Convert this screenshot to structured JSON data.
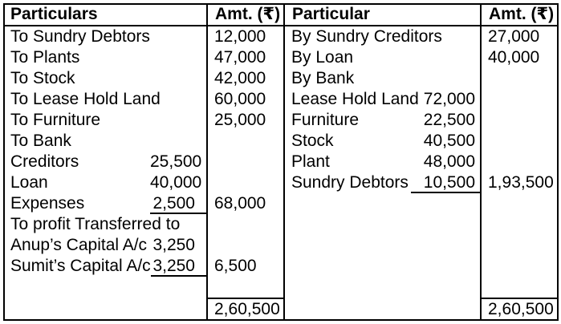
{
  "table": {
    "headers": {
      "debit_particulars": "Particulars",
      "debit_amount": "Amt. (₹)",
      "credit_particulars": "Particular",
      "credit_amount": "Amt. (₹)"
    },
    "debit": {
      "rows": [
        {
          "label": "To Sundry Debtors",
          "inner": "",
          "amount": "12,000"
        },
        {
          "label": "To Plants",
          "inner": "",
          "amount": "47,000"
        },
        {
          "label": "To Stock",
          "inner": "",
          "amount": "42,000"
        },
        {
          "label": "To Lease Hold Land",
          "inner": "",
          "amount": "60,000"
        },
        {
          "label": "To Furniture",
          "inner": "",
          "amount": "25,000"
        },
        {
          "label": "To Bank",
          "inner": "",
          "amount": ""
        },
        {
          "label": "Creditors",
          "inner": "25,500",
          "amount": ""
        },
        {
          "label": "Loan",
          "inner": "40,000",
          "amount": ""
        },
        {
          "label": "Expenses",
          "inner": "2,500",
          "amount": "68,000"
        },
        {
          "label": "To profit Transferred to",
          "inner": "",
          "amount": ""
        },
        {
          "label": "Anup’s Capital A/c",
          "inner": "3,250",
          "amount": ""
        },
        {
          "label": "Sumit’s Capital A/c",
          "inner": "3,250",
          "amount": "6,500"
        },
        {
          "label": "",
          "inner": "",
          "amount": ""
        }
      ],
      "total": "2,60,500"
    },
    "credit": {
      "rows": [
        {
          "label": "By Sundry Creditors",
          "inner": "",
          "amount": "27,000"
        },
        {
          "label": "By Loan",
          "inner": "",
          "amount": "40,000"
        },
        {
          "label": "By Bank",
          "inner": "",
          "amount": ""
        },
        {
          "label": "Lease Hold Land",
          "inner": "72,000",
          "amount": ""
        },
        {
          "label": "Furniture",
          "inner": "22,500",
          "amount": ""
        },
        {
          "label": "Stock",
          "inner": "40,500",
          "amount": ""
        },
        {
          "label": "Plant",
          "inner": "48,000",
          "amount": ""
        },
        {
          "label": "Sundry Debtors",
          "inner": "10,500",
          "amount": "1,93,500"
        }
      ],
      "total": "2,60,500"
    }
  }
}
